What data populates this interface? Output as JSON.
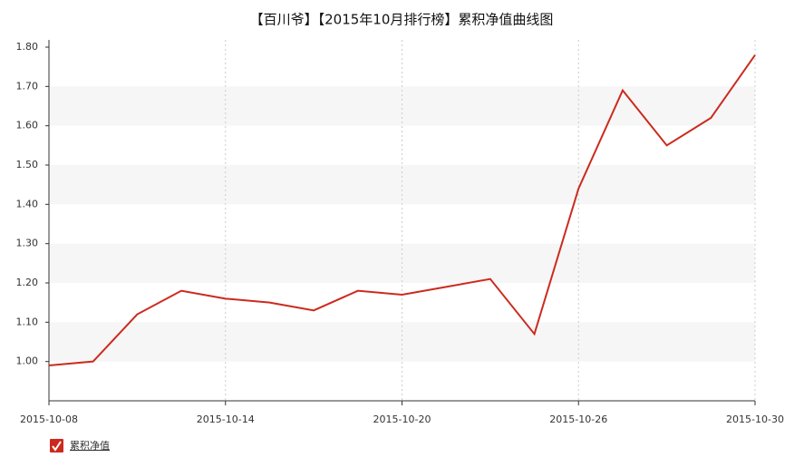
{
  "chart_data": {
    "type": "line",
    "title": "【百川爷】【2015年10月排行榜】累积净值曲线图",
    "categories": [
      "2015-10-08",
      null,
      null,
      null,
      "2015-10-14",
      null,
      null,
      null,
      "2015-10-20",
      null,
      null,
      null,
      "2015-10-26",
      null,
      null,
      null,
      "2015-10-30"
    ],
    "series": [
      {
        "name": "累积净值",
        "color": "#cc2a1e",
        "values": [
          0.99,
          1.0,
          1.12,
          1.18,
          1.16,
          1.15,
          1.13,
          1.18,
          1.17,
          1.19,
          1.21,
          1.07,
          1.44,
          1.69,
          1.55,
          1.62,
          1.78
        ]
      }
    ],
    "ylim": [
      0.9,
      1.8
    ],
    "yticks": [
      {
        "value": 1.0,
        "label": "1.00"
      },
      {
        "value": 1.1,
        "label": "1.10"
      },
      {
        "value": 1.2,
        "label": "1.20"
      },
      {
        "value": 1.3,
        "label": "1.30"
      },
      {
        "value": 1.4,
        "label": "1.40"
      },
      {
        "value": 1.5,
        "label": "1.50"
      },
      {
        "value": 1.6,
        "label": "1.60"
      },
      {
        "value": 1.7,
        "label": "1.70"
      },
      {
        "value": 1.8,
        "label": "1.80"
      }
    ],
    "grid": true
  }
}
